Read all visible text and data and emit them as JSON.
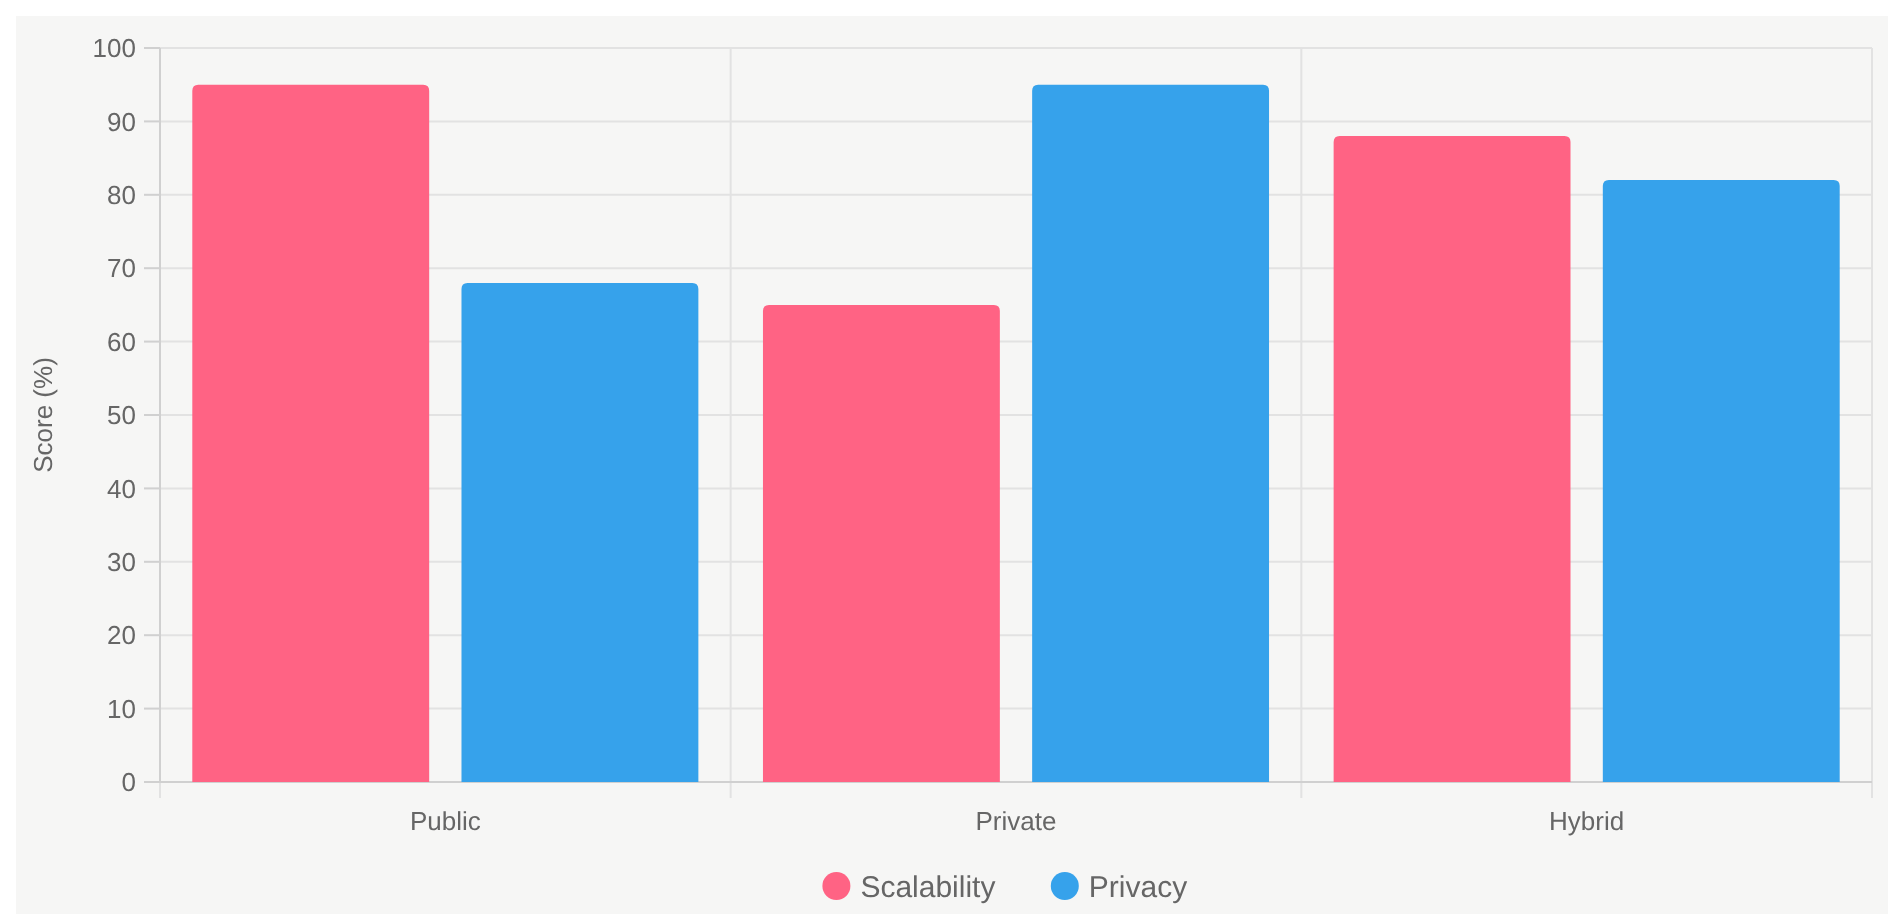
{
  "chart_data": {
    "type": "bar",
    "ylabel": "Score (%)",
    "categories": [
      "Public",
      "Private",
      "Hybrid"
    ],
    "series": [
      {
        "name": "Scalability",
        "color": "#ff6384",
        "values": [
          95,
          65,
          88
        ]
      },
      {
        "name": "Privacy",
        "color": "#36a2eb",
        "values": [
          68,
          95,
          82
        ]
      }
    ],
    "ylim": [
      0,
      100
    ],
    "yticks": [
      0,
      10,
      20,
      30,
      40,
      50,
      60,
      70,
      80,
      90,
      100
    ],
    "grid": true,
    "legend": "bottom"
  }
}
